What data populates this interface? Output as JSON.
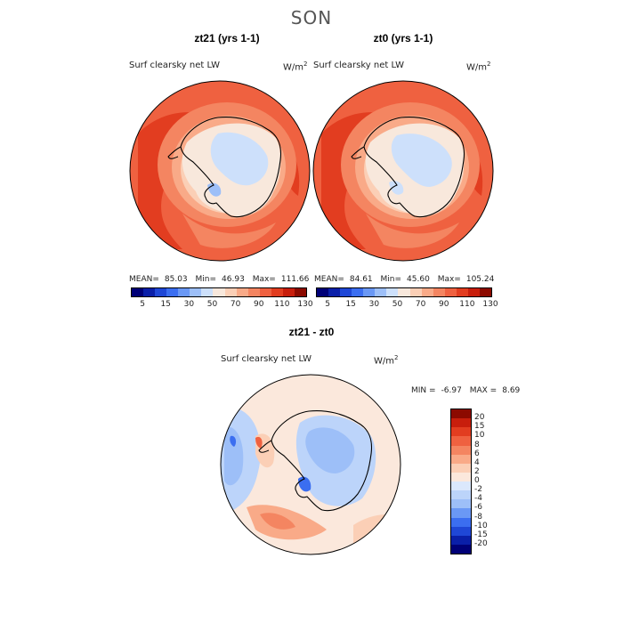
{
  "figure": {
    "title": "SON"
  },
  "panels": [
    {
      "title": "zt21 (yrs 1-1)",
      "variable": "Surf clearsky net LW",
      "units_base": "W/m",
      "units_exp": "2",
      "stats": {
        "mean_label": "MEAN=",
        "mean": "85.03",
        "min_label": "Min=",
        "min": "46.93",
        "max_label": "Max=",
        "max": "111.66"
      }
    },
    {
      "title": "zt0 (yrs 1-1)",
      "variable": "Surf clearsky net LW",
      "units_base": "W/m",
      "units_exp": "2",
      "stats": {
        "mean_label": "MEAN=",
        "mean": "84.61",
        "min_label": "Min=",
        "min": "45.60",
        "max_label": "Max=",
        "max": "105.24"
      }
    }
  ],
  "diff_panel": {
    "title": "zt21 - zt0",
    "variable": "Surf clearsky net LW",
    "units_base": "W/m",
    "units_exp": "2",
    "stats": {
      "min_label": "MIN =",
      "min": "-6.97",
      "max_label": "MAX =",
      "max": "8.69"
    }
  },
  "colorbar_abs": {
    "colors": [
      "#000077",
      "#0a1fa8",
      "#1f47d6",
      "#3b6ef0",
      "#6a98f5",
      "#9dbff8",
      "#cde0fb",
      "#f8e8dc",
      "#fbcfb6",
      "#f9aa88",
      "#f48561",
      "#ef6140",
      "#e23d20",
      "#c81e0c",
      "#8c0a00"
    ],
    "tick_labels": [
      "5",
      "15",
      "30",
      "50",
      "70",
      "90",
      "110",
      "130"
    ]
  },
  "colorbar_diff": {
    "colors": [
      "#000077",
      "#0a1fa8",
      "#1f47d6",
      "#3b6ef0",
      "#6a98f5",
      "#9dbff8",
      "#bcd4fa",
      "#dbe8fc",
      "#fbe8dc",
      "#fbcfb6",
      "#f9aa88",
      "#f48561",
      "#ef6140",
      "#e23d20",
      "#c81e0c",
      "#8c0a00"
    ],
    "tick_labels": [
      "20",
      "15",
      "10",
      "8",
      "6",
      "4",
      "2",
      "0",
      "-2",
      "-4",
      "-6",
      "-8",
      "-10",
      "-15",
      "-20"
    ]
  }
}
